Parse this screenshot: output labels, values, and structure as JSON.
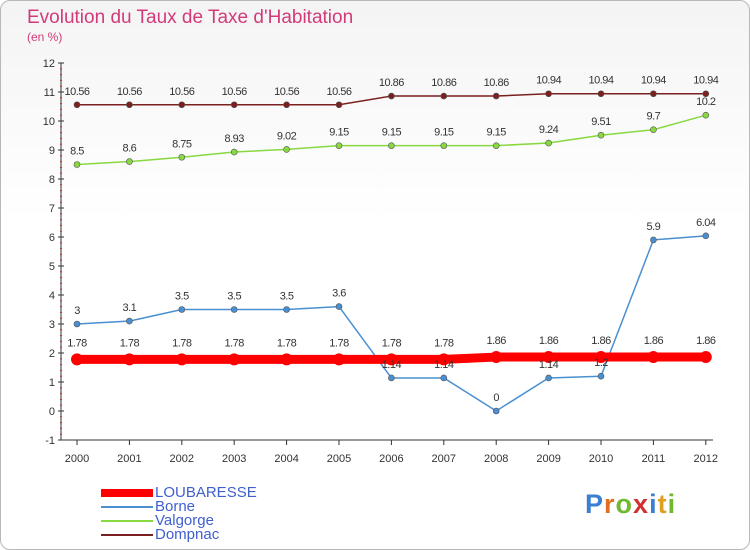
{
  "chart_data": {
    "type": "line",
    "title": "Evolution du Taux de Taxe d'Habitation",
    "unit_label": "(en %)",
    "x": [
      "2000",
      "2001",
      "2002",
      "2003",
      "2004",
      "2005",
      "2006",
      "2007",
      "2008",
      "2009",
      "2010",
      "2011",
      "2012"
    ],
    "ylim": [
      -1,
      12
    ],
    "yticks": [
      -1,
      0,
      1,
      2,
      3,
      4,
      5,
      6,
      7,
      8,
      9,
      10,
      11,
      12
    ],
    "grid": false,
    "legend_position": "bottom-left",
    "series": [
      {
        "name": "LOUBARESSE",
        "color": "#ff0000",
        "values": [
          1.78,
          1.78,
          1.78,
          1.78,
          1.78,
          1.78,
          1.78,
          1.78,
          1.86,
          1.86,
          1.86,
          1.86,
          1.86
        ],
        "labels": [
          "1.78",
          "1.78",
          "1.78",
          "1.78",
          "1.78",
          "1.78",
          "1.78",
          "1.78",
          "1.86",
          "1.86",
          "1.86",
          "1.86",
          "1.86"
        ]
      },
      {
        "name": "Borne",
        "color": "#4a8fd0",
        "values": [
          3,
          3.1,
          3.5,
          3.5,
          3.5,
          3.6,
          1.14,
          1.14,
          0,
          1.14,
          1.2,
          5.9,
          6.04
        ],
        "labels": [
          "3",
          "3.1",
          "3.5",
          "3.5",
          "3.5",
          "3.6",
          "1.14",
          "1.14",
          "0",
          "1.14",
          "1.2",
          "5.9",
          "6.04"
        ]
      },
      {
        "name": "Valgorge",
        "color": "#88d840",
        "values": [
          8.5,
          8.6,
          8.75,
          8.93,
          9.02,
          9.15,
          9.15,
          9.15,
          9.15,
          9.24,
          9.51,
          9.7,
          10.2
        ],
        "labels": [
          "8.5",
          "8.6",
          "8.75",
          "8.93",
          "9.02",
          "9.15",
          "9.15",
          "9.15",
          "9.15",
          "9.24",
          "9.51",
          "9.7",
          "10.2"
        ]
      },
      {
        "name": "Dompnac",
        "color": "#7a2020",
        "values": [
          10.56,
          10.56,
          10.56,
          10.56,
          10.56,
          10.56,
          10.86,
          10.86,
          10.86,
          10.94,
          10.94,
          10.94,
          10.94
        ],
        "labels": [
          "10.56",
          "10.56",
          "10.56",
          "10.56",
          "10.56",
          "10.56",
          "10.86",
          "10.86",
          "10.86",
          "10.94",
          "10.94",
          "10.94",
          "10.94"
        ]
      }
    ]
  },
  "brand": {
    "letters": [
      "P",
      "r",
      "o",
      "x",
      "i",
      "t",
      "i"
    ],
    "colors": [
      "#3a7fd0",
      "#e07020",
      "#70b830",
      "#d03030",
      "#3a7fd0",
      "#e0a020",
      "#70b830"
    ]
  }
}
